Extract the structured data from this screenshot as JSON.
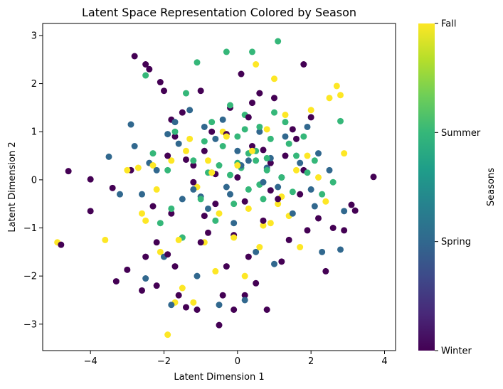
{
  "chart_data": {
    "type": "scatter",
    "title": "Latent Space Representation Colored by Season",
    "xlabel": "Latent Dimension 1",
    "ylabel": "Latent Dimension 2",
    "xlim": [
      -5.3,
      4.3
    ],
    "ylim": [
      -3.55,
      3.25
    ],
    "xticks": [
      "−4",
      "−2",
      "0",
      "2",
      "4"
    ],
    "yticks": [
      "−3",
      "−2",
      "−1",
      "0",
      "1",
      "2",
      "3"
    ],
    "grid": false,
    "colorbar": {
      "label": "Seasons",
      "ticks": [
        "Winter",
        "Spring",
        "Summer",
        "Fall"
      ],
      "colormap": [
        "#440154",
        "#482878",
        "#3e4989",
        "#31688e",
        "#26828e",
        "#1f9e89",
        "#35b779",
        "#6ece58",
        "#b5de2b",
        "#fde725"
      ]
    },
    "season_colors": {
      "Winter": "#440154",
      "Spring": "#31688e",
      "Summer": "#35b779",
      "Fall": "#fde725"
    },
    "series": [
      {
        "name": "Winter",
        "x": [
          -4.8,
          -4.6,
          -4.0,
          -4.0,
          -3.4,
          -3.3,
          -3.0,
          -2.9,
          -2.8,
          -2.6,
          -2.5,
          -2.5,
          -2.4,
          -2.3,
          -2.2,
          -2.1,
          -2.0,
          -1.9,
          -1.9,
          -1.8,
          -1.8,
          -1.7,
          -1.7,
          -1.6,
          -1.5,
          -1.4,
          -1.2,
          -1.1,
          -1.0,
          -1.0,
          -0.9,
          -0.8,
          -0.7,
          -0.6,
          -0.5,
          -0.4,
          -0.3,
          -0.2,
          -0.1,
          0.0,
          0.1,
          0.2,
          0.3,
          0.3,
          0.4,
          0.5,
          0.6,
          0.7,
          0.8,
          0.9,
          1.0,
          1.2,
          1.3,
          1.4,
          1.6,
          1.7,
          1.8,
          1.9,
          2.0,
          2.2,
          2.4,
          2.6,
          2.9,
          3.1,
          3.2,
          3.7,
          -1.4,
          0.9,
          -0.6,
          0.2,
          -2.2,
          1.5,
          -1.2,
          0.7,
          -0.3,
          1.1,
          0.4,
          -0.9,
          1.8,
          -0.1
        ],
        "y": [
          -1.35,
          0.18,
          0.01,
          -0.65,
          -0.17,
          -2.11,
          -1.87,
          0.2,
          2.57,
          -2.3,
          2.4,
          -1.6,
          2.3,
          -0.55,
          -2.2,
          2.03,
          1.85,
          -1.55,
          0.5,
          1.25,
          -0.7,
          -1.8,
          0.9,
          -2.4,
          1.4,
          -2.65,
          0.3,
          -2.7,
          -1.3,
          1.85,
          0.6,
          -1.1,
          1.0,
          -0.5,
          -3.02,
          -2.4,
          0.95,
          1.5,
          -2.7,
          0.05,
          2.2,
          -2.4,
          1.3,
          -1.6,
          0.7,
          -2.15,
          1.8,
          -0.85,
          -2.7,
          0.35,
          1.7,
          -1.7,
          0.5,
          -1.25,
          0.85,
          -0.3,
          2.4,
          -1.05,
          1.3,
          -0.8,
          -1.9,
          -1.0,
          -1.05,
          -0.52,
          -0.64,
          0.06,
          0.42,
          -0.22,
          0.12,
          -0.45,
          -1.3,
          1.05,
          -0.05,
          0.62,
          -1.8,
          -0.4,
          1.6,
          -0.75,
          0.2,
          -1.15
        ]
      },
      {
        "name": "Spring",
        "x": [
          -3.5,
          -3.2,
          -2.9,
          -2.8,
          -2.6,
          -2.5,
          -2.4,
          -2.2,
          -2.0,
          -1.9,
          -1.8,
          -1.7,
          -1.5,
          -1.3,
          -1.2,
          -1.1,
          -0.9,
          -0.8,
          -0.7,
          -0.5,
          -0.4,
          -0.2,
          -0.1,
          0.0,
          0.2,
          0.3,
          0.5,
          0.6,
          0.8,
          1.0,
          1.1,
          1.3,
          1.5,
          1.7,
          1.9,
          2.0,
          2.2,
          2.3,
          2.5,
          2.8,
          2.9,
          -1.0,
          0.7,
          -0.6,
          1.2,
          0.1,
          -1.6,
          2.1,
          -0.3,
          0.9
        ],
        "y": [
          0.48,
          -0.3,
          1.15,
          0.7,
          -0.3,
          -2.05,
          0.35,
          0.2,
          -1.6,
          0.95,
          -2.6,
          1.2,
          -0.4,
          1.45,
          -0.2,
          -2.0,
          1.1,
          -0.6,
          0.15,
          -2.6,
          1.25,
          -0.3,
          -0.9,
          0.6,
          -2.5,
          0.4,
          -1.5,
          1.0,
          0.25,
          -1.75,
          -0.15,
          0.9,
          -0.7,
          0.35,
          1.1,
          -0.2,
          0.55,
          -1.5,
          0.2,
          -1.45,
          -0.65,
          -0.35,
          -0.05,
          0.85,
          0.05,
          0.3,
          0.75,
          -0.55,
          -0.15,
          0.45
        ]
      },
      {
        "name": "Summer",
        "x": [
          -2.5,
          -2.3,
          -2.1,
          -1.9,
          -1.8,
          -1.7,
          -1.5,
          -1.4,
          -1.2,
          -1.1,
          -1.0,
          -0.9,
          -0.7,
          -0.6,
          -0.5,
          -0.3,
          -0.2,
          -0.1,
          0.0,
          0.1,
          0.2,
          0.3,
          0.4,
          0.5,
          0.6,
          0.7,
          0.8,
          0.9,
          1.0,
          1.1,
          1.2,
          1.4,
          1.5,
          1.6,
          1.8,
          1.9,
          2.1,
          2.3,
          2.6,
          2.8,
          -0.4,
          0.0,
          0.3,
          0.6,
          -0.2,
          0.8,
          0.2,
          -0.8,
          1.3,
          0.5
        ],
        "y": [
          2.17,
          0.55,
          -0.9,
          0.2,
          -0.6,
          1.0,
          -1.2,
          1.8,
          0.4,
          2.44,
          -0.4,
          0.8,
          1.2,
          -0.85,
          0.3,
          2.66,
          1.55,
          -0.5,
          0.9,
          0.25,
          1.35,
          -0.2,
          2.66,
          0.6,
          1.1,
          -0.4,
          0.45,
          0.85,
          1.4,
          2.88,
          0.05,
          0.75,
          -0.25,
          0.5,
          0.9,
          0.15,
          0.4,
          -0.3,
          -0.05,
          1.22,
          0.7,
          0.35,
          0.55,
          -0.1,
          0.1,
          0.2,
          1.05,
          0.15,
          1.2,
          0.4
        ]
      },
      {
        "name": "Fall",
        "x": [
          -4.9,
          -3.6,
          -3.0,
          -2.7,
          -2.6,
          -2.5,
          -2.3,
          -2.2,
          -2.1,
          -1.9,
          -1.8,
          -1.7,
          -1.6,
          -1.5,
          -1.3,
          -1.2,
          -1.1,
          -0.9,
          -0.8,
          -0.6,
          -0.5,
          -0.3,
          -0.1,
          0.0,
          0.2,
          0.4,
          0.5,
          0.6,
          0.8,
          0.9,
          1.0,
          1.1,
          1.3,
          1.4,
          1.6,
          1.7,
          1.9,
          2.0,
          2.2,
          2.4,
          2.5,
          2.7,
          2.8,
          2.9,
          -0.7,
          0.3,
          -0.4,
          1.2,
          -1.4,
          0.7
        ],
        "y": [
          -1.3,
          -1.25,
          0.2,
          0.25,
          -0.7,
          -0.85,
          0.3,
          -0.2,
          -1.5,
          -3.22,
          0.4,
          -2.55,
          -1.25,
          -2.25,
          0.85,
          -2.55,
          -0.15,
          -1.3,
          0.4,
          -1.9,
          -0.7,
          0.9,
          -1.2,
          0.3,
          -2.0,
          0.6,
          2.4,
          -1.4,
          1.05,
          -0.9,
          2.1,
          -0.5,
          1.35,
          -0.75,
          0.2,
          -1.4,
          0.5,
          1.45,
          0.05,
          -0.45,
          1.7,
          1.95,
          1.76,
          0.55,
          0.15,
          -0.6,
          1.0,
          -0.35,
          0.6,
          -0.95
        ]
      }
    ]
  }
}
